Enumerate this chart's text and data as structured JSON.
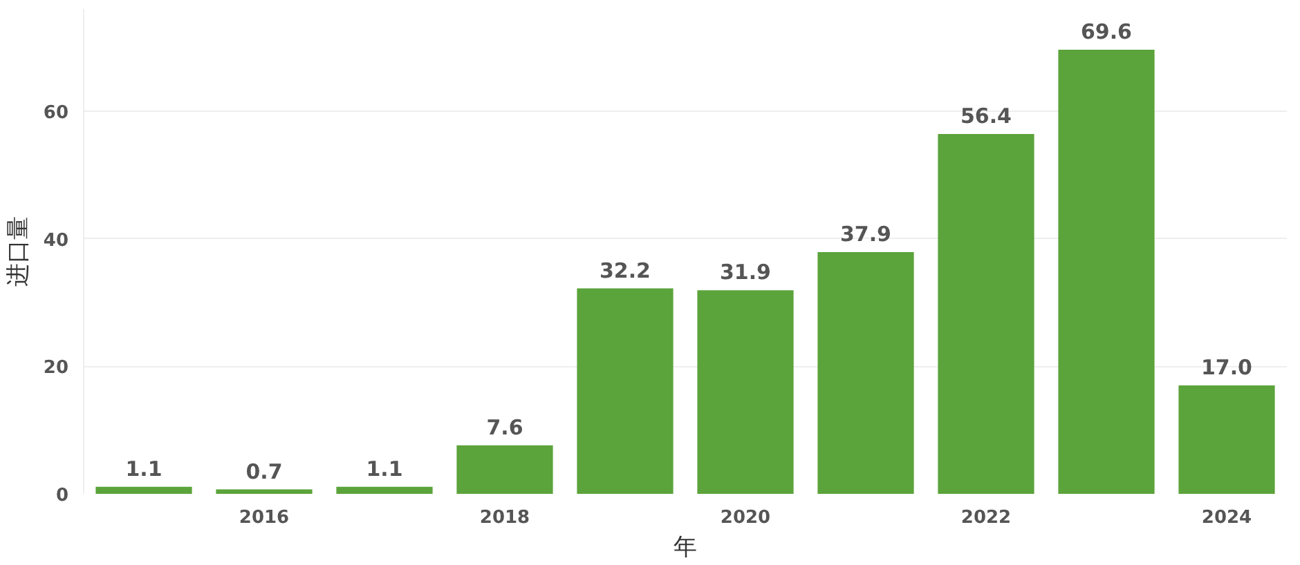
{
  "chart_data": {
    "type": "bar",
    "xlabel": "年",
    "ylabel": "进口量",
    "x": [
      2015,
      2016,
      2017,
      2018,
      2019,
      2020,
      2021,
      2022,
      2023,
      2024
    ],
    "values": [
      1.1,
      0.7,
      1.1,
      7.6,
      32.2,
      31.9,
      37.9,
      56.4,
      69.6,
      17.0
    ],
    "value_labels": [
      "1.1",
      "0.7",
      "1.1",
      "7.6",
      "32.2",
      "31.9",
      "37.9",
      "56.4",
      "69.6",
      "17.0"
    ],
    "color": "#5ba33b",
    "xlim": [
      2014.5,
      2024.5
    ],
    "xticks": [
      2016,
      2018,
      2020,
      2022,
      2024
    ],
    "ylim": [
      0,
      76
    ],
    "yticks": [
      0,
      20,
      40,
      60
    ],
    "grid": "y"
  }
}
